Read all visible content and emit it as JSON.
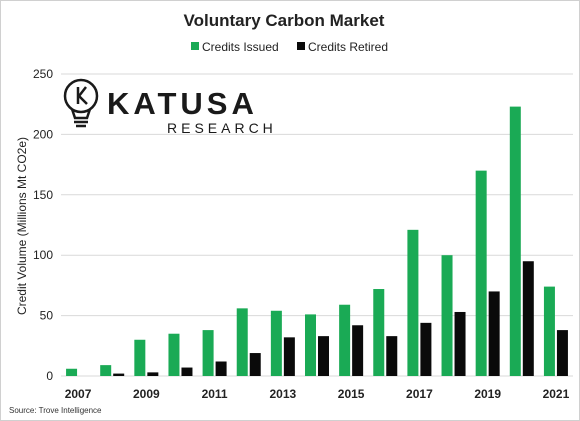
{
  "chart_data": {
    "type": "bar",
    "title": "Voluntary Carbon Market",
    "ylabel": "Credit Volume (Millions Mt CO2e)",
    "xlabel": "",
    "ylim": [
      0,
      250
    ],
    "yticks": [
      0,
      50,
      100,
      150,
      200,
      250
    ],
    "categories": [
      "2007",
      "2008",
      "2009",
      "2010",
      "2011",
      "2012",
      "2013",
      "2014",
      "2015",
      "2016",
      "2017",
      "2018",
      "2019",
      "2020",
      "2021"
    ],
    "xtick_labels": [
      "2007",
      "",
      "2009",
      "",
      "2011",
      "",
      "2013",
      "",
      "2015",
      "",
      "2017",
      "",
      "2019",
      "",
      "2021"
    ],
    "legend_position": "top-center",
    "series": [
      {
        "name": "Credits Issued",
        "color": "#1aaa55",
        "values": [
          6,
          9,
          30,
          35,
          38,
          56,
          54,
          51,
          59,
          72,
          121,
          100,
          170,
          223,
          74
        ]
      },
      {
        "name": "Credits Retired",
        "color": "#0a0a0a",
        "values": [
          0,
          2,
          3,
          7,
          12,
          19,
          32,
          33,
          42,
          33,
          44,
          53,
          70,
          95,
          38
        ]
      }
    ],
    "source": "Source: Trove Intelligence"
  },
  "logo": {
    "name": "KATUSA",
    "tagline": "RESEARCH",
    "icon": "lightbulb-k-icon"
  }
}
